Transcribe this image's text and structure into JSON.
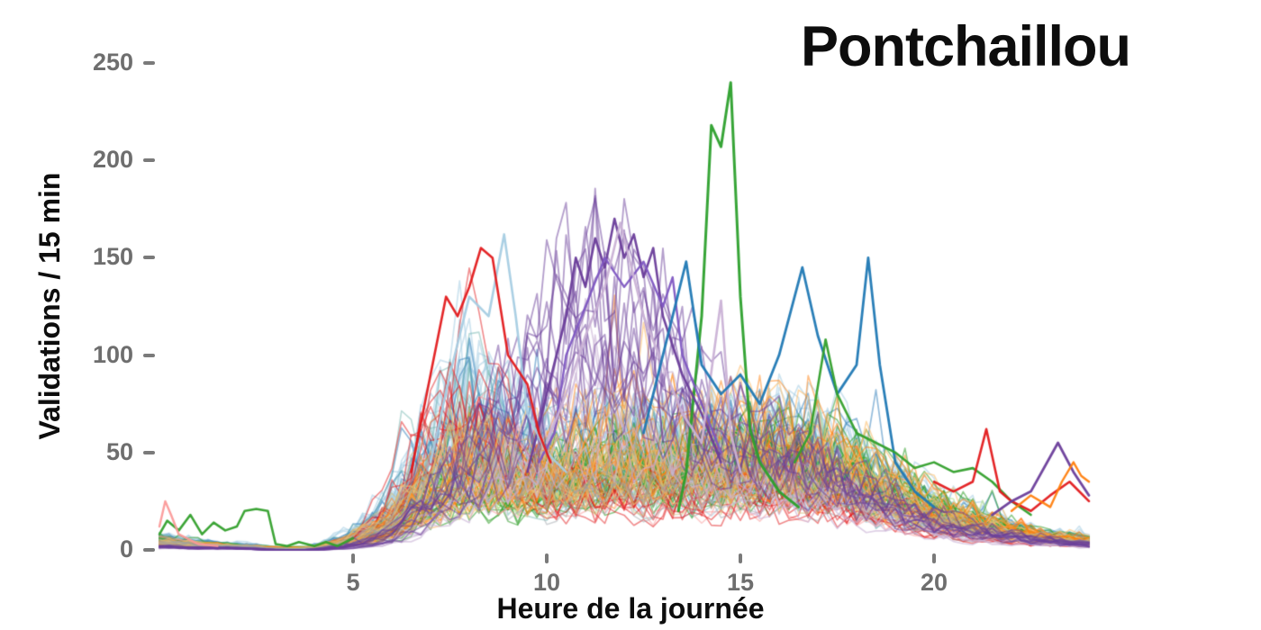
{
  "chart_data": {
    "type": "line",
    "title": "Pontchaillou",
    "xlabel": "Heure de la journée",
    "ylabel": "Validations / 15 min",
    "xlim": [
      0,
      24
    ],
    "ylim": [
      0,
      250
    ],
    "x_ticks": [
      5,
      10,
      15,
      20
    ],
    "y_ticks": [
      0,
      50,
      100,
      150,
      200,
      250
    ],
    "grid": false,
    "legend": false,
    "background": "#ffffff",
    "tick_color": "#6e6e6e",
    "label_color": "#0d0d0d",
    "x_step_hours": 0.25,
    "profiles": {
      "base": [
        7,
        4,
        3,
        1,
        1,
        8,
        25,
        60,
        85,
        70,
        55,
        60,
        62,
        58,
        60,
        62,
        65,
        60,
        50,
        35,
        25,
        18,
        12,
        8,
        6
      ],
      "morning": [
        4,
        3,
        2,
        1,
        1,
        6,
        30,
        95,
        115,
        75,
        45,
        40,
        42,
        40,
        44,
        48,
        45,
        40,
        34,
        26,
        16,
        11,
        8,
        5,
        4
      ],
      "purple": [
        2,
        1,
        1,
        0,
        0,
        2,
        8,
        25,
        45,
        70,
        105,
        125,
        120,
        105,
        70,
        55,
        50,
        45,
        35,
        25,
        15,
        10,
        8,
        5,
        3
      ],
      "green_low": [
        5,
        3,
        2,
        1,
        1,
        3,
        10,
        25,
        35,
        30,
        35,
        40,
        45,
        40,
        42,
        45,
        48,
        45,
        40,
        30,
        22,
        15,
        10,
        6,
        4
      ],
      "midday_orange": [
        4,
        3,
        2,
        1,
        1,
        5,
        15,
        35,
        50,
        45,
        52,
        60,
        65,
        60,
        62,
        65,
        60,
        55,
        45,
        35,
        25,
        18,
        12,
        8,
        5
      ]
    },
    "ensemble_groups": [
      {
        "name": "light-blue",
        "color": "#a6cee3",
        "profile": "base",
        "count": 30,
        "amp": [
          0.4,
          1.1
        ],
        "alpha": 0.55,
        "width": 1.7
      },
      {
        "name": "steel-blue",
        "color": "#2b7bba",
        "profile": "base",
        "count": 10,
        "amp": [
          0.5,
          1.15
        ],
        "alpha": 0.5,
        "width": 1.7
      },
      {
        "name": "teal",
        "color": "#76b7b2",
        "profile": "base",
        "count": 8,
        "amp": [
          0.4,
          1.0
        ],
        "alpha": 0.5,
        "width": 1.6
      },
      {
        "name": "light-green",
        "color": "#b2df8a",
        "profile": "green_low",
        "count": 12,
        "amp": [
          0.5,
          1.1
        ],
        "alpha": 0.6,
        "width": 1.6
      },
      {
        "name": "green",
        "color": "#33a02c",
        "profile": "green_low",
        "count": 18,
        "amp": [
          0.6,
          1.3
        ],
        "alpha": 0.55,
        "width": 1.6
      },
      {
        "name": "pink",
        "color": "#fb9a99",
        "profile": "base",
        "count": 8,
        "amp": [
          0.3,
          0.8
        ],
        "alpha": 0.5,
        "width": 1.6
      },
      {
        "name": "red",
        "color": "#e31a1c",
        "profile": "morning",
        "count": 10,
        "amp": [
          0.35,
          1.05
        ],
        "alpha": 0.5,
        "width": 1.6
      },
      {
        "name": "light-orange",
        "color": "#fdbf6f",
        "profile": "midday_orange",
        "count": 10,
        "amp": [
          0.5,
          1.1
        ],
        "alpha": 0.6,
        "width": 1.6
      },
      {
        "name": "orange",
        "color": "#ff7f0e",
        "profile": "midday_orange",
        "count": 12,
        "amp": [
          0.5,
          1.15
        ],
        "alpha": 0.5,
        "width": 1.6
      },
      {
        "name": "tan",
        "color": "#d8c07a",
        "profile": "base",
        "count": 7,
        "amp": [
          0.4,
          0.9
        ],
        "alpha": 0.5,
        "width": 1.6
      },
      {
        "name": "gray",
        "color": "#9aa0a6",
        "profile": "base",
        "count": 7,
        "amp": [
          0.3,
          0.8
        ],
        "alpha": 0.45,
        "width": 1.6
      },
      {
        "name": "lavender",
        "color": "#cab2d6",
        "profile": "purple",
        "count": 6,
        "amp": [
          0.4,
          0.9
        ],
        "alpha": 0.6,
        "width": 1.7
      },
      {
        "name": "purple",
        "color": "#6a3d9a",
        "profile": "purple",
        "count": 12,
        "amp": [
          0.6,
          1.2
        ],
        "alpha": 0.5,
        "width": 1.8
      }
    ],
    "highlight_series": [
      {
        "name": "green-outlier-1445",
        "color": "#2ca02c",
        "width": 3.0,
        "points": [
          [
            13.4,
            20
          ],
          [
            13.6,
            40
          ],
          [
            14.0,
            120
          ],
          [
            14.25,
            218
          ],
          [
            14.5,
            207
          ],
          [
            14.75,
            240
          ],
          [
            15.0,
            130
          ],
          [
            15.25,
            62
          ],
          [
            15.5,
            45
          ],
          [
            16.0,
            30
          ],
          [
            16.5,
            22
          ]
        ]
      },
      {
        "name": "purple-peak-1",
        "color": "#6a3d9a",
        "width": 2.6,
        "points": [
          [
            9.5,
            40
          ],
          [
            10.0,
            80
          ],
          [
            10.5,
            120
          ],
          [
            10.75,
            150
          ],
          [
            11.0,
            135
          ],
          [
            11.25,
            160
          ],
          [
            11.5,
            145
          ],
          [
            11.75,
            170
          ],
          [
            12.0,
            150
          ],
          [
            12.25,
            162
          ],
          [
            12.5,
            140
          ],
          [
            12.75,
            155
          ],
          [
            13.0,
            120
          ],
          [
            13.5,
            90
          ],
          [
            14.0,
            70
          ],
          [
            14.5,
            45
          ]
        ]
      },
      {
        "name": "purple-peak-2",
        "color": "#7e57c2",
        "width": 2.4,
        "points": [
          [
            9.8,
            45
          ],
          [
            10.2,
            60
          ],
          [
            10.5,
            100
          ],
          [
            11.0,
            125
          ],
          [
            11.5,
            150
          ],
          [
            12.0,
            135
          ],
          [
            12.5,
            148
          ],
          [
            13.0,
            125
          ],
          [
            13.25,
            140
          ],
          [
            13.5,
            100
          ],
          [
            14.0,
            75
          ],
          [
            14.5,
            50
          ]
        ]
      },
      {
        "name": "lavender-peak",
        "color": "#cab2d6",
        "width": 2.6,
        "points": [
          [
            10.0,
            55
          ],
          [
            10.5,
            80
          ],
          [
            11.0,
            110
          ],
          [
            11.5,
            135
          ],
          [
            11.9,
            168
          ],
          [
            12.25,
            140
          ],
          [
            12.5,
            120
          ],
          [
            13.0,
            95
          ],
          [
            13.5,
            70
          ],
          [
            14.0,
            55
          ],
          [
            14.5,
            128
          ],
          [
            14.75,
            60
          ],
          [
            15.0,
            40
          ]
        ]
      },
      {
        "name": "lightblue-morning-spike",
        "color": "#a6cee3",
        "width": 2.6,
        "points": [
          [
            7.0,
            45
          ],
          [
            7.5,
            90
          ],
          [
            8.0,
            130
          ],
          [
            8.5,
            120
          ],
          [
            8.9,
            162
          ],
          [
            9.2,
            120
          ],
          [
            9.5,
            70
          ],
          [
            10.0,
            50
          ],
          [
            10.5,
            40
          ]
        ]
      },
      {
        "name": "red-morning",
        "color": "#e31a1c",
        "width": 2.6,
        "points": [
          [
            6.5,
            40
          ],
          [
            7.0,
            90
          ],
          [
            7.4,
            130
          ],
          [
            7.7,
            120
          ],
          [
            8.0,
            135
          ],
          [
            8.3,
            155
          ],
          [
            8.6,
            150
          ],
          [
            9.0,
            100
          ],
          [
            9.5,
            85
          ],
          [
            9.8,
            60
          ],
          [
            10.1,
            45
          ]
        ]
      },
      {
        "name": "blue-afternoon",
        "color": "#1f78b4",
        "width": 2.8,
        "points": [
          [
            12.5,
            60
          ],
          [
            13.0,
            100
          ],
          [
            13.6,
            148
          ],
          [
            14.0,
            95
          ],
          [
            14.5,
            80
          ],
          [
            15.0,
            90
          ],
          [
            15.5,
            75
          ],
          [
            16.0,
            100
          ],
          [
            16.6,
            145
          ],
          [
            17.0,
            110
          ],
          [
            17.5,
            80
          ],
          [
            18.0,
            95
          ],
          [
            18.3,
            150
          ],
          [
            18.6,
            95
          ],
          [
            19.0,
            45
          ],
          [
            19.5,
            30
          ],
          [
            20.0,
            22
          ]
        ]
      },
      {
        "name": "green-afternoon",
        "color": "#33a02c",
        "width": 2.6,
        "points": [
          [
            16.4,
            45
          ],
          [
            16.8,
            60
          ],
          [
            17.2,
            108
          ],
          [
            17.5,
            80
          ],
          [
            18.0,
            60
          ],
          [
            18.5,
            55
          ],
          [
            19.0,
            50
          ],
          [
            19.5,
            42
          ],
          [
            20.0,
            45
          ],
          [
            20.5,
            40
          ],
          [
            21.0,
            42
          ],
          [
            21.5,
            35
          ],
          [
            22.0,
            25
          ],
          [
            22.5,
            18
          ]
        ]
      },
      {
        "name": "red-evening-spike",
        "color": "#e31a1c",
        "width": 2.6,
        "points": [
          [
            20.0,
            35
          ],
          [
            20.5,
            30
          ],
          [
            21.0,
            35
          ],
          [
            21.35,
            62
          ],
          [
            21.7,
            30
          ],
          [
            22.0,
            25
          ],
          [
            22.5,
            20
          ],
          [
            23.0,
            28
          ],
          [
            23.5,
            35
          ],
          [
            24.0,
            25
          ]
        ]
      },
      {
        "name": "purple-evening-spike",
        "color": "#6a3d9a",
        "width": 2.8,
        "points": [
          [
            21.5,
            18
          ],
          [
            22.0,
            25
          ],
          [
            22.5,
            30
          ],
          [
            23.2,
            55
          ],
          [
            23.6,
            40
          ],
          [
            24.0,
            28
          ]
        ]
      },
      {
        "name": "orange-end",
        "color": "#ff7f0e",
        "width": 2.4,
        "points": [
          [
            22.0,
            20
          ],
          [
            22.5,
            28
          ],
          [
            23.0,
            22
          ],
          [
            23.3,
            35
          ],
          [
            23.6,
            45
          ],
          [
            23.8,
            38
          ],
          [
            24.0,
            35
          ]
        ]
      },
      {
        "name": "green-early-morning",
        "color": "#33a02c",
        "width": 2.6,
        "points": [
          [
            0.0,
            8
          ],
          [
            0.2,
            15
          ],
          [
            0.5,
            10
          ],
          [
            0.8,
            18
          ],
          [
            1.1,
            8
          ],
          [
            1.4,
            14
          ],
          [
            1.7,
            10
          ],
          [
            2.0,
            12
          ],
          [
            2.2,
            20
          ],
          [
            2.5,
            21
          ],
          [
            2.8,
            20
          ],
          [
            3.0,
            3
          ],
          [
            3.3,
            2
          ],
          [
            3.6,
            4
          ],
          [
            4.0,
            2
          ],
          [
            4.3,
            4
          ],
          [
            4.6,
            2
          ],
          [
            5.0,
            6
          ]
        ]
      },
      {
        "name": "pink-midnight",
        "color": "#fb9a99",
        "width": 2.4,
        "points": [
          [
            0.0,
            12
          ],
          [
            0.15,
            25
          ],
          [
            0.3,
            18
          ],
          [
            0.5,
            8
          ],
          [
            0.8,
            5
          ],
          [
            1.0,
            3
          ],
          [
            1.5,
            2
          ]
        ]
      }
    ]
  }
}
